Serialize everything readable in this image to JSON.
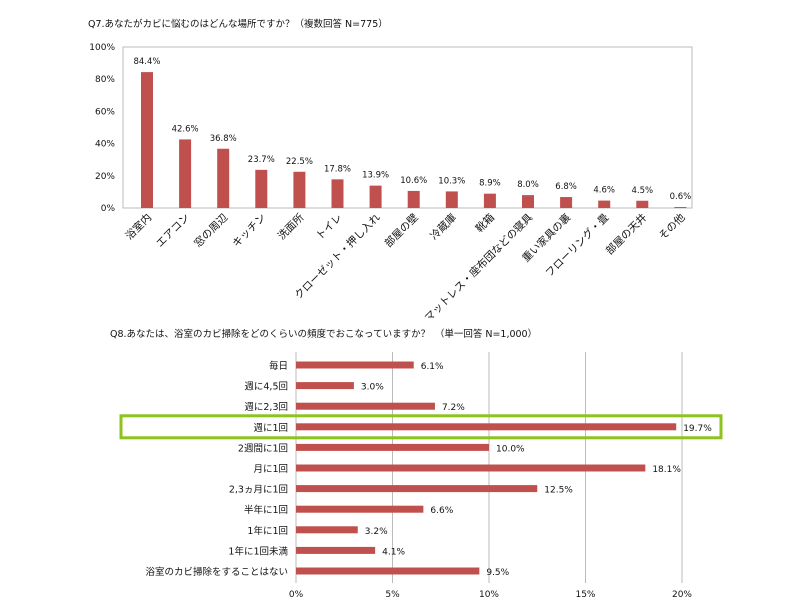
{
  "chart_data": [
    {
      "type": "bar",
      "orientation": "vertical",
      "title": "Q7.あなたがカビに悩むのはどんな場所ですか？（複数回答 N=775）",
      "categories": [
        "浴室内",
        "エアコン",
        "窓の周辺",
        "キッチン",
        "洗面所",
        "トイレ",
        "クローゼット・押し入れ",
        "部屋の壁",
        "冷蔵庫",
        "靴箱",
        "マットレス・座布団などの寝具",
        "重い家具の裏",
        "フローリング・畳",
        "部屋の天井",
        "その他"
      ],
      "values": [
        84.4,
        42.6,
        36.8,
        23.7,
        22.5,
        17.8,
        13.9,
        10.6,
        10.3,
        8.9,
        8.0,
        6.8,
        4.6,
        4.5,
        0.6
      ],
      "value_labels": [
        "84.4%",
        "42.6%",
        "36.8%",
        "23.7%",
        "22.5%",
        "17.8%",
        "13.9%",
        "10.6%",
        "10.3%",
        "8.9%",
        "8.0%",
        "6.8%",
        "4.6%",
        "4.5%",
        "0.6%"
      ],
      "ylim": [
        0,
        100
      ],
      "yticks": [
        "0%",
        "20%",
        "40%",
        "60%",
        "80%",
        "100%"
      ],
      "grid": false,
      "bar_color": "#c0504d"
    },
    {
      "type": "bar",
      "orientation": "horizontal",
      "title": "Q8.あなたは、浴室のカビ掃除をどのくらいの頻度でおこなっていますか？　（単一回答 N=1,000）",
      "categories": [
        "毎日",
        "週に4,5回",
        "週に2,3回",
        "週に1回",
        "2週間に1回",
        "月に1回",
        "2,3ヵ月に1回",
        "半年に1回",
        "1年に1回",
        "1年に1回未満",
        "浴室のカビ掃除をすることはない"
      ],
      "values": [
        6.1,
        3.0,
        7.2,
        19.7,
        10.0,
        18.1,
        12.5,
        6.6,
        3.2,
        4.1,
        9.5
      ],
      "value_labels": [
        "6.1%",
        "3.0%",
        "7.2%",
        "19.7%",
        "10.0%",
        "18.1%",
        "12.5%",
        "6.6%",
        "3.2%",
        "4.1%",
        "9.5%"
      ],
      "xlim": [
        0,
        20
      ],
      "xticks": [
        "0%",
        "5%",
        "10%",
        "15%",
        "20%"
      ],
      "grid": true,
      "highlighted_category": "週に1回",
      "highlight_color": "#8dc21f",
      "bar_color": "#c0504d"
    }
  ]
}
